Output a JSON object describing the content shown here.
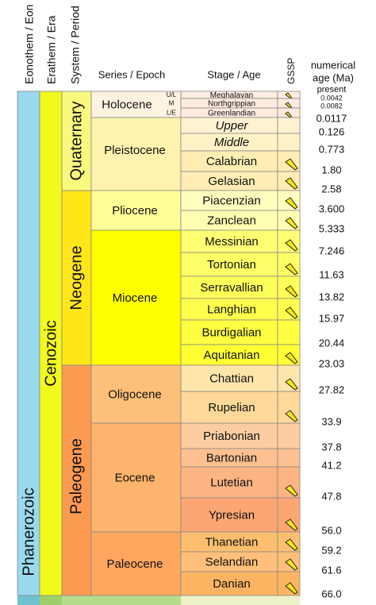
{
  "headers": {
    "eon": "Eonothem / Eon",
    "era": "Erathem / Era",
    "period": "System / Period",
    "epoch": "Series / Epoch",
    "stage": "Stage / Age",
    "gssp": "GSSP",
    "age": [
      "numerical",
      "age (Ma)"
    ]
  },
  "eon": "Phanerozoic",
  "era": "Cenozoic",
  "periods": [
    "Quaternary",
    "Neogene",
    "Paleogene"
  ],
  "epochs": [
    "Holocene",
    "Pleistocene",
    "Pliocene",
    "Miocene",
    "Oligocene",
    "Eocene",
    "Paleocene"
  ],
  "holocene_subdivisions": [
    "U/L",
    "M",
    "L/E"
  ],
  "stages": [
    {
      "name": "Meghalayan",
      "gssp": true
    },
    {
      "name": "Northgrippian",
      "gssp": true
    },
    {
      "name": "Greenlandian",
      "gssp": true
    },
    {
      "name": "Upper",
      "gssp": false
    },
    {
      "name": "Middle",
      "gssp": false
    },
    {
      "name": "Calabrian",
      "gssp": true
    },
    {
      "name": "Gelasian",
      "gssp": true
    },
    {
      "name": "Piacenzian",
      "gssp": true
    },
    {
      "name": "Zanclean",
      "gssp": true
    },
    {
      "name": "Messinian",
      "gssp": true
    },
    {
      "name": "Tortonian",
      "gssp": true
    },
    {
      "name": "Serravallian",
      "gssp": true
    },
    {
      "name": "Langhian",
      "gssp": true
    },
    {
      "name": "Burdigalian",
      "gssp": false
    },
    {
      "name": "Aquitanian",
      "gssp": true
    },
    {
      "name": "Chattian",
      "gssp": true
    },
    {
      "name": "Rupelian",
      "gssp": true
    },
    {
      "name": "Priabonian",
      "gssp": false
    },
    {
      "name": "Bartonian",
      "gssp": false
    },
    {
      "name": "Lutetian",
      "gssp": true
    },
    {
      "name": "Ypresian",
      "gssp": true
    },
    {
      "name": "Thanetian",
      "gssp": true
    },
    {
      "name": "Selandian",
      "gssp": true
    },
    {
      "name": "Danian",
      "gssp": true
    }
  ],
  "ages": [
    "present",
    "0.0042",
    "0.0082",
    "0.0117",
    "0.126",
    "0.773",
    "1.80",
    "2.58",
    "3.600",
    "5.333",
    "7.246",
    "11.63",
    "13.82",
    "15.97",
    "20.44",
    "23.03",
    "27.82",
    "33.9",
    "37.8",
    "41.2",
    "47.8",
    "56.0",
    "59.2",
    "61.6",
    "66.0"
  ]
}
